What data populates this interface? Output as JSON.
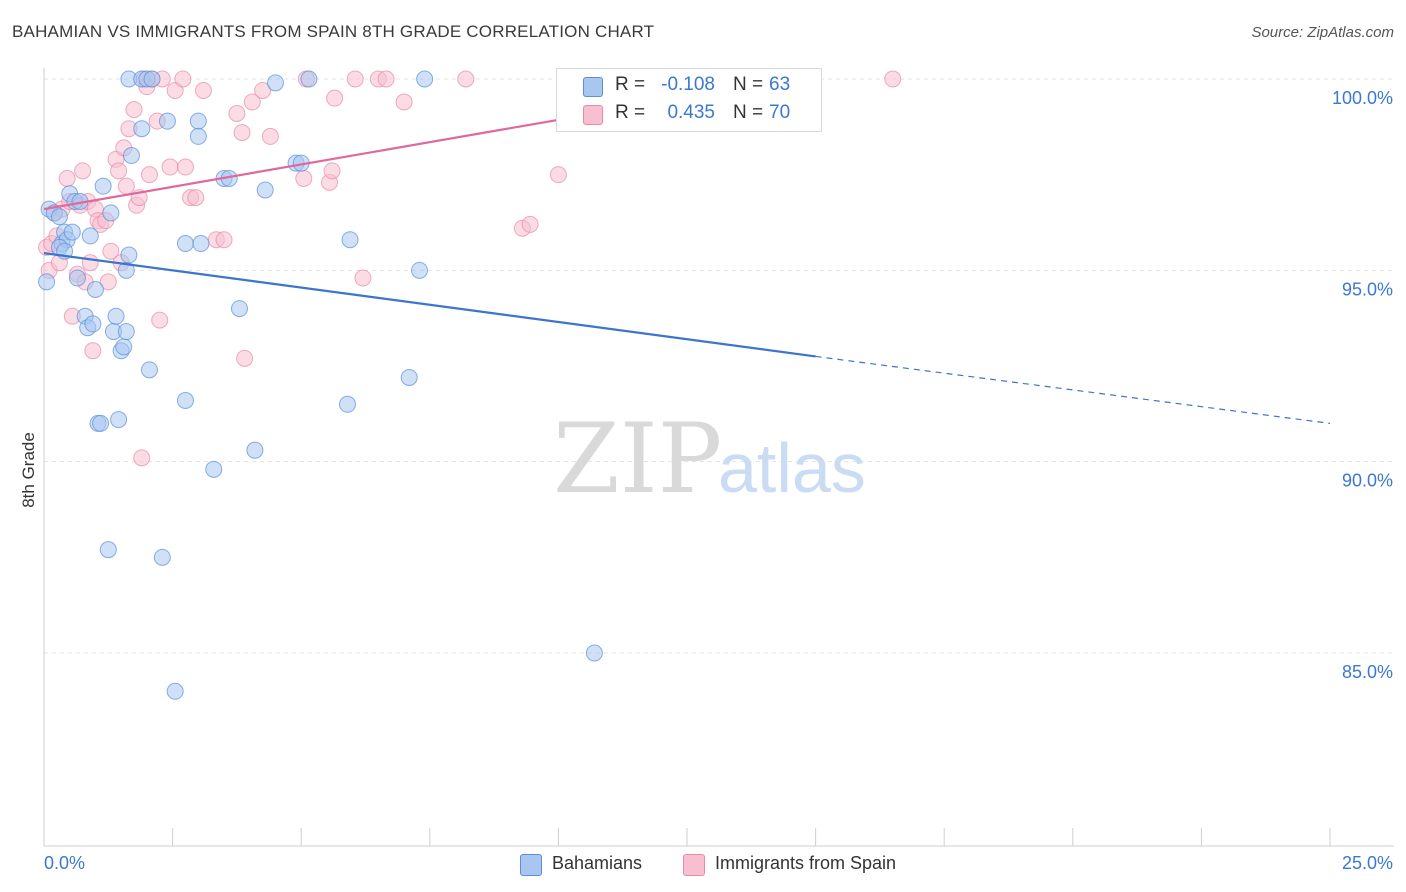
{
  "title": "BAHAMIAN VS IMMIGRANTS FROM SPAIN 8TH GRADE CORRELATION CHART",
  "source": "Source: ZipAtlas.com",
  "watermark": {
    "zip": "ZIP",
    "atlas": "atlas"
  },
  "legend": {
    "r_label": "R =",
    "n_label": "N =",
    "rows": [
      {
        "r": "-0.108",
        "n": "63",
        "color": "#a8c6f0",
        "border": "#5a8fd8"
      },
      {
        "r": "0.435",
        "n": "70",
        "color": "#f7bfd0",
        "border": "#e889a8"
      }
    ]
  },
  "bottom_legend": [
    {
      "label": "Bahamians",
      "color": "#a8c6f0",
      "border": "#5a8fd8"
    },
    {
      "label": "Immigrants from Spain",
      "color": "#f7bfd0",
      "border": "#e889a8"
    }
  ],
  "chart_data": {
    "type": "scatter",
    "title": "BAHAMIAN VS IMMIGRANTS FROM SPAIN 8TH GRADE CORRELATION CHART",
    "xlabel": "",
    "ylabel": "8th Grade",
    "xlim": [
      0.0,
      25.0
    ],
    "ylim": [
      80.0,
      100.7
    ],
    "x_tick_labels": [
      "0.0%",
      "25.0%"
    ],
    "y_ticks": [
      100.0,
      95.0,
      90.0,
      85.0
    ],
    "y_tick_labels": [
      "100.0%",
      "95.0%",
      "90.0%",
      "85.0%"
    ],
    "grid": true,
    "legend_position": "top-center",
    "series": [
      {
        "name": "Bahamians",
        "color": "#5a8fd8",
        "fill": "#a8c6f0",
        "trend": {
          "x0": 0.0,
          "y0": 95.45,
          "x1": 15.0,
          "y1": 92.75,
          "dashed_to_x": 25.0,
          "dashed_to_y": 91.0
        },
        "points": [
          [
            0.05,
            94.7
          ],
          [
            0.1,
            96.6
          ],
          [
            0.2,
            96.5
          ],
          [
            0.3,
            96.4
          ],
          [
            0.35,
            95.7
          ],
          [
            0.4,
            96.0
          ],
          [
            0.45,
            95.8
          ],
          [
            0.5,
            97.0
          ],
          [
            0.55,
            96.0
          ],
          [
            0.6,
            96.8
          ],
          [
            0.65,
            94.8
          ],
          [
            0.7,
            96.8
          ],
          [
            0.8,
            93.8
          ],
          [
            0.85,
            93.5
          ],
          [
            0.9,
            95.9
          ],
          [
            0.95,
            93.6
          ],
          [
            1.0,
            94.5
          ],
          [
            1.05,
            91.0
          ],
          [
            1.1,
            91.0
          ],
          [
            1.15,
            97.2
          ],
          [
            1.25,
            87.7
          ],
          [
            1.3,
            96.5
          ],
          [
            1.35,
            93.4
          ],
          [
            1.4,
            93.8
          ],
          [
            1.45,
            91.1
          ],
          [
            1.5,
            92.9
          ],
          [
            1.55,
            93.0
          ],
          [
            1.6,
            95.0
          ],
          [
            1.65,
            95.4
          ],
          [
            1.7,
            98.0
          ],
          [
            1.65,
            100.0
          ],
          [
            1.9,
            98.7
          ],
          [
            2.05,
            92.4
          ],
          [
            2.3,
            87.5
          ],
          [
            2.4,
            98.9
          ],
          [
            2.55,
            84.0
          ],
          [
            2.75,
            95.7
          ],
          [
            2.75,
            91.6
          ],
          [
            3.0,
            98.9
          ],
          [
            3.0,
            98.5
          ],
          [
            3.05,
            95.7
          ],
          [
            3.3,
            89.8
          ],
          [
            3.5,
            97.4
          ],
          [
            3.6,
            97.4
          ],
          [
            3.8,
            94.0
          ],
          [
            4.1,
            90.3
          ],
          [
            4.3,
            97.1
          ],
          [
            4.5,
            99.9
          ],
          [
            4.9,
            97.8
          ],
          [
            5.0,
            97.8
          ],
          [
            5.15,
            100.0
          ],
          [
            5.9,
            91.5
          ],
          [
            5.95,
            95.8
          ],
          [
            7.1,
            92.2
          ],
          [
            7.3,
            95.0
          ],
          [
            7.4,
            100.0
          ],
          [
            10.7,
            85.0
          ],
          [
            1.9,
            100.0
          ],
          [
            2.0,
            100.0
          ],
          [
            0.3,
            95.6
          ],
          [
            1.6,
            93.4
          ],
          [
            2.1,
            100.0
          ],
          [
            0.4,
            95.5
          ]
        ]
      },
      {
        "name": "Immigrants from Spain",
        "color": "#e889a8",
        "fill": "#f7bfd0",
        "trend": {
          "x0": 0.0,
          "y0": 96.6,
          "x1": 15.0,
          "y1": 100.1
        },
        "points": [
          [
            0.05,
            95.6
          ],
          [
            0.1,
            95.0
          ],
          [
            0.15,
            95.7
          ],
          [
            0.2,
            96.5
          ],
          [
            0.25,
            95.9
          ],
          [
            0.3,
            95.2
          ],
          [
            0.35,
            96.6
          ],
          [
            0.45,
            97.4
          ],
          [
            0.5,
            96.8
          ],
          [
            0.55,
            93.8
          ],
          [
            0.65,
            94.9
          ],
          [
            0.7,
            96.7
          ],
          [
            0.75,
            97.6
          ],
          [
            0.8,
            94.7
          ],
          [
            0.85,
            96.8
          ],
          [
            0.9,
            95.2
          ],
          [
            0.95,
            92.9
          ],
          [
            1.0,
            96.6
          ],
          [
            1.05,
            96.3
          ],
          [
            1.1,
            96.2
          ],
          [
            1.2,
            96.3
          ],
          [
            1.25,
            94.7
          ],
          [
            1.3,
            95.5
          ],
          [
            1.4,
            97.9
          ],
          [
            1.45,
            97.6
          ],
          [
            1.5,
            95.2
          ],
          [
            1.55,
            98.2
          ],
          [
            1.6,
            97.2
          ],
          [
            1.65,
            98.7
          ],
          [
            1.75,
            99.2
          ],
          [
            1.8,
            96.7
          ],
          [
            1.85,
            96.9
          ],
          [
            1.9,
            90.1
          ],
          [
            1.95,
            100.0
          ],
          [
            2.0,
            99.8
          ],
          [
            2.05,
            97.5
          ],
          [
            2.1,
            100.0
          ],
          [
            2.2,
            98.9
          ],
          [
            2.25,
            93.7
          ],
          [
            2.3,
            100.0
          ],
          [
            2.45,
            97.7
          ],
          [
            2.55,
            99.7
          ],
          [
            2.7,
            100.0
          ],
          [
            2.75,
            97.7
          ],
          [
            2.85,
            96.9
          ],
          [
            2.95,
            96.9
          ],
          [
            3.1,
            99.7
          ],
          [
            3.35,
            95.8
          ],
          [
            3.5,
            95.8
          ],
          [
            3.75,
            99.1
          ],
          [
            3.85,
            98.6
          ],
          [
            3.9,
            92.7
          ],
          [
            4.05,
            99.4
          ],
          [
            4.25,
            99.7
          ],
          [
            4.4,
            98.5
          ],
          [
            5.05,
            97.4
          ],
          [
            5.1,
            100.0
          ],
          [
            5.55,
            97.3
          ],
          [
            5.6,
            97.6
          ],
          [
            5.65,
            99.5
          ],
          [
            6.05,
            100.0
          ],
          [
            6.2,
            94.8
          ],
          [
            6.5,
            100.0
          ],
          [
            6.65,
            100.0
          ],
          [
            7.0,
            99.4
          ],
          [
            8.2,
            100.0
          ],
          [
            9.3,
            96.1
          ],
          [
            9.45,
            96.2
          ],
          [
            10.0,
            97.5
          ],
          [
            16.5,
            100.0
          ]
        ]
      }
    ]
  }
}
